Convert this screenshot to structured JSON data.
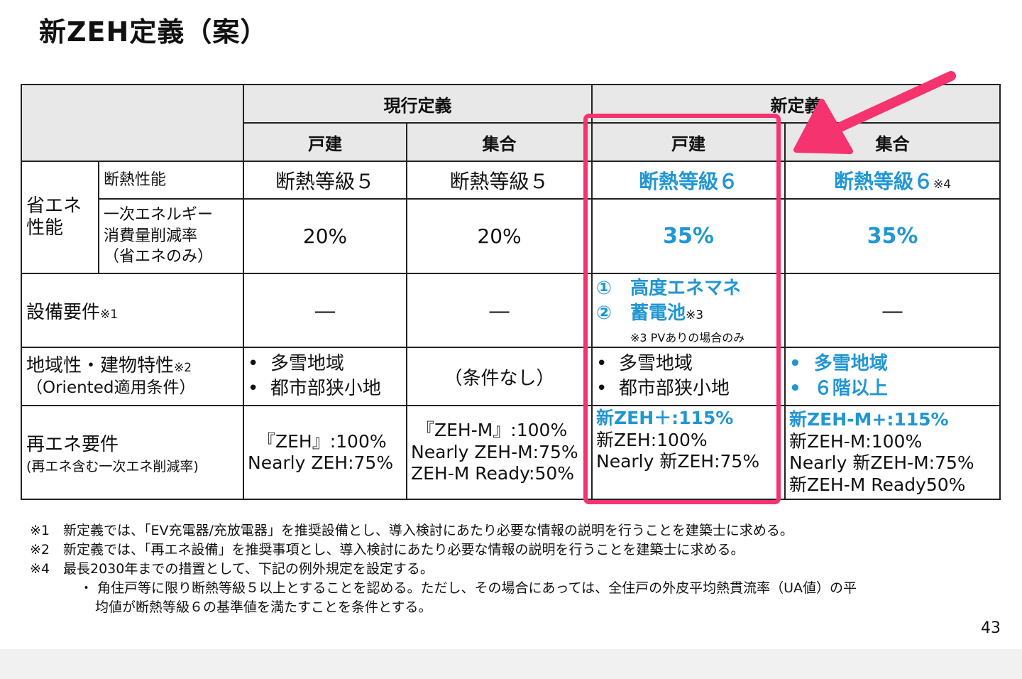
{
  "title": "新ZEH定義（案）",
  "page_number": "43",
  "colors": {
    "accent_blue": "#2196d3",
    "highlight_pink": "#f5336f",
    "header_gray": "#e8e8e8"
  },
  "table": {
    "group_current": "現行定義",
    "group_new": "新定義",
    "sub_detached": "戸建",
    "sub_collective": "集合",
    "rows": {
      "energy": {
        "label": "省エネ性能",
        "insulation_label": "断熱性能",
        "insulation": {
          "cur_det": "断熱等級５",
          "cur_col": "断熱等級５",
          "new_det": "断熱等級６",
          "new_col": "断熱等級６",
          "new_col_note": "※4"
        },
        "primary_label_1": "一次エネルギー",
        "primary_label_2": "消費量削減率",
        "primary_label_3": "（省エネのみ）",
        "primary": {
          "cur_det": "20%",
          "cur_col": "20%",
          "new_det": "35%",
          "new_col": "35%"
        }
      },
      "equipment": {
        "label": "設備要件",
        "label_note": "※1",
        "cur_det": "―",
        "cur_col": "―",
        "new_det_1": "①　高度エネマネ",
        "new_det_2": "②　蓄電池",
        "new_det_2_note": "※3",
        "new_det_3": "※3 PVありの場合のみ",
        "new_col": "―"
      },
      "region": {
        "label": "地域性・建物特性",
        "label_note": "※2",
        "label_2": "（Oriented適用条件）",
        "cur_det": [
          "多雪地域",
          "都市部狭小地"
        ],
        "cur_col": "（条件なし）",
        "new_det": [
          "多雪地域",
          "都市部狭小地"
        ],
        "new_col": [
          "多雪地域",
          "６階以上"
        ]
      },
      "renewable": {
        "label": "再エネ要件",
        "label_2": "(再エネ含む一次エネ削減率)",
        "cur_det": [
          "『ZEH』:100%",
          "Nearly ZEH:75%"
        ],
        "cur_col": [
          "『ZEH-M』:100%",
          "Nearly ZEH-M:75%",
          "ZEH-M Ready:50%"
        ],
        "new_det_bold": "新ZEH＋:115%",
        "new_det": [
          "新ZEH:100%",
          "Nearly 新ZEH:75%"
        ],
        "new_col_bold": "新ZEH-M+:115%",
        "new_col": [
          "新ZEH-M:100%",
          "Nearly 新ZEH-M:75%",
          "新ZEH-M Ready50%"
        ]
      }
    }
  },
  "notes": [
    "※1　新定義では、「EV充電器/充放電器」を推奨設備とし、導入検討にあたり必要な情報の説明を行うことを建築士に求める。",
    "※2　新定義では、「再エネ設備」を推奨事項とし、導入検討にあたり必要な情報の説明を行うことを建築士に求める。",
    "※4　最長2030年までの措置として、下記の例外規定を設定する。",
    "・ 角住戸等に限り断熱等級５以上とすることを認める。ただし、その場合にあっては、全住戸の外皮平均熱貫流率（UA値）の平",
    "均値が断熱等級６の基準値を満たすことを条件とする。"
  ]
}
